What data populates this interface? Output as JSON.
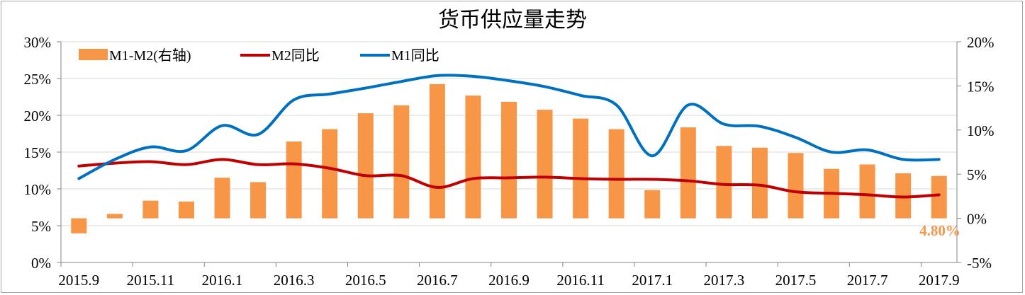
{
  "chart_data": {
    "type": "bar+line",
    "title": "货币供应量走势",
    "categories": [
      "2015.9",
      "2015.10",
      "2015.11",
      "2015.12",
      "2016.1",
      "2016.2",
      "2016.3",
      "2016.4",
      "2016.5",
      "2016.6",
      "2016.7",
      "2016.8",
      "2016.9",
      "2016.10",
      "2016.11",
      "2016.12",
      "2017.1",
      "2017.2",
      "2017.3",
      "2017.4",
      "2017.5",
      "2017.6",
      "2017.7",
      "2017.8",
      "2017.9"
    ],
    "x_tick_labels": [
      "2015.9",
      "2015.11",
      "2016.1",
      "2016.3",
      "2016.5",
      "2016.7",
      "2016.9",
      "2016.11",
      "2017.1",
      "2017.3",
      "2017.5",
      "2017.7",
      "2017.9"
    ],
    "series": [
      {
        "name": "M1-M2(右轴)",
        "type": "bar",
        "axis": "right",
        "color": "#f79646",
        "values": [
          -1.7,
          0.5,
          2.0,
          1.9,
          4.6,
          4.1,
          8.7,
          10.1,
          11.9,
          12.8,
          15.2,
          13.9,
          13.2,
          12.3,
          11.3,
          10.1,
          3.2,
          10.3,
          8.2,
          8.0,
          7.4,
          5.6,
          6.1,
          5.1,
          4.8
        ]
      },
      {
        "name": "M2同比",
        "type": "line",
        "axis": "left",
        "color": "#c00000",
        "values": [
          13.1,
          13.5,
          13.7,
          13.3,
          14.0,
          13.3,
          13.4,
          12.8,
          11.8,
          11.8,
          10.2,
          11.4,
          11.5,
          11.6,
          11.4,
          11.3,
          11.3,
          11.1,
          10.6,
          10.5,
          9.6,
          9.4,
          9.2,
          8.9,
          9.2
        ]
      },
      {
        "name": "M1同比",
        "type": "line",
        "axis": "left",
        "color": "#0070c0",
        "values": [
          11.4,
          14.0,
          15.7,
          15.2,
          18.6,
          17.4,
          22.1,
          22.9,
          23.7,
          24.6,
          25.4,
          25.3,
          24.7,
          23.9,
          22.7,
          21.4,
          14.5,
          21.4,
          18.8,
          18.5,
          17.0,
          15.0,
          15.3,
          14.0,
          14.0
        ]
      }
    ],
    "left_axis": {
      "range": [
        0,
        30
      ],
      "step": 5,
      "tick_labels": [
        "0%",
        "5%",
        "10%",
        "15%",
        "20%",
        "25%",
        "30%"
      ]
    },
    "right_axis": {
      "range": [
        -5,
        20
      ],
      "step": 5,
      "tick_labels": [
        "-5%",
        "0%",
        "5%",
        "10%",
        "15%",
        "20%"
      ]
    },
    "annotation": {
      "text": "4.80%",
      "color": "#f79646"
    },
    "grid": true,
    "legend_position": "top-left"
  }
}
